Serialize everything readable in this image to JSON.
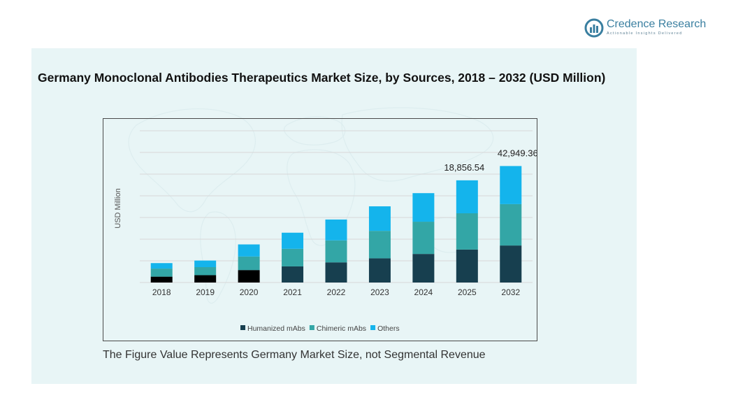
{
  "brand": {
    "name": "Credence Research",
    "tagline": "Actionable Insights Delivered",
    "color": "#3a7fa0"
  },
  "footnote": "The Figure Value Represents Germany Market Size, not Segmental Revenue",
  "colors": {
    "panel_background": "#e8f5f6",
    "humanized": "#173f4f",
    "chimeric": "#33a6a6",
    "others": "#14b4ec",
    "early_humanized": "#000000"
  },
  "chart_data": {
    "type": "bar",
    "stacked": true,
    "title": "Germany Monoclonal Antibodies Therapeutics Market Size, by Sources, 2018 – 2032 (USD Million)",
    "ylabel": "USD Million",
    "xlabel": "",
    "categories": [
      "2018",
      "2019",
      "2020",
      "2021",
      "2022",
      "2023",
      "2024",
      "2025",
      "2032"
    ],
    "ylim": [
      0,
      21000
    ],
    "grid": true,
    "legend_position": "bottom",
    "series": [
      {
        "name": "Humanized mAbs",
        "values": [
          800,
          1000,
          1700,
          2200,
          2750,
          3300,
          3900,
          4500,
          5050
        ]
      },
      {
        "name": "Chimeric mAbs",
        "values": [
          1100,
          1100,
          1850,
          2400,
          3000,
          3750,
          4400,
          4950,
          5650
        ]
      },
      {
        "name": "Others",
        "values": [
          750,
          900,
          1650,
          2200,
          2850,
          3350,
          3900,
          4500,
          5200
        ]
      }
    ],
    "data_labels": [
      {
        "category": "2025",
        "text": "18,856.54"
      },
      {
        "category": "2032",
        "text": "42,949.36"
      }
    ]
  }
}
